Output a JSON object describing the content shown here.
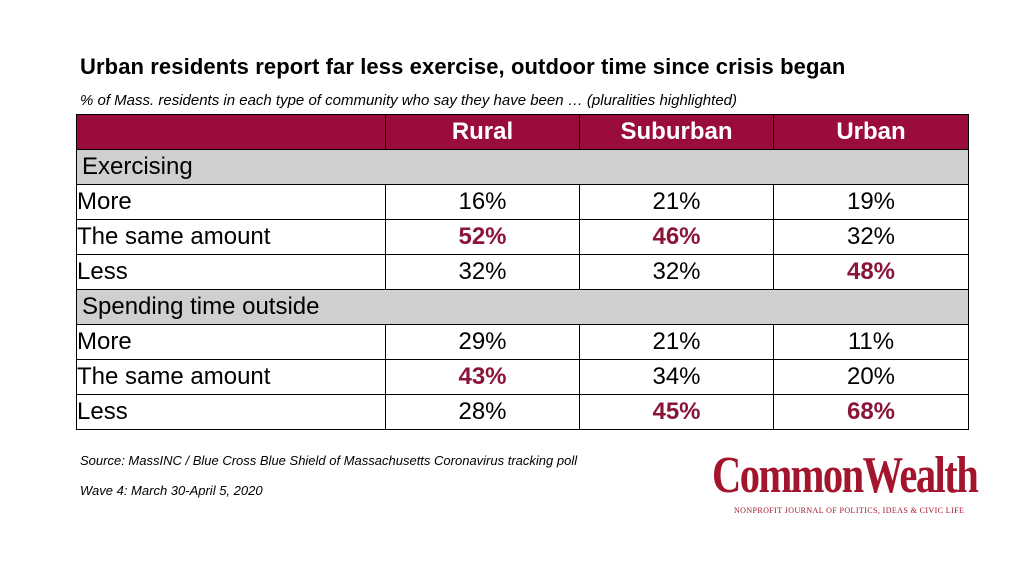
{
  "title": "Urban residents report far less exercise, outdoor time since crisis began",
  "subtitle": "% of Mass. residents in each type of community who say they have been … (pluralities highlighted)",
  "colors": {
    "header_bg": "#9a0c3b",
    "highlight": "#8b1538",
    "section_bg": "#cfcfcf",
    "logo": "#a3152d"
  },
  "chart_data": {
    "type": "table",
    "columns": [
      "Rural",
      "Suburban",
      "Urban"
    ],
    "sections": [
      {
        "name": "Exercising",
        "rows": [
          {
            "label": "More",
            "values": [
              "16%",
              "21%",
              "19%"
            ],
            "highlight": [
              false,
              false,
              false
            ]
          },
          {
            "label": "The same amount",
            "values": [
              "52%",
              "46%",
              "32%"
            ],
            "highlight": [
              true,
              true,
              false
            ]
          },
          {
            "label": "Less",
            "values": [
              "32%",
              "32%",
              "48%"
            ],
            "highlight": [
              false,
              false,
              true
            ]
          }
        ]
      },
      {
        "name": "Spending time outside",
        "rows": [
          {
            "label": "More",
            "values": [
              "29%",
              "21%",
              "11%"
            ],
            "highlight": [
              false,
              false,
              false
            ]
          },
          {
            "label": "The same amount",
            "values": [
              "43%",
              "34%",
              "20%"
            ],
            "highlight": [
              true,
              false,
              false
            ]
          },
          {
            "label": "Less",
            "values": [
              "28%",
              "45%",
              "68%"
            ],
            "highlight": [
              false,
              true,
              true
            ]
          }
        ]
      }
    ]
  },
  "source": "Source: MassINC / Blue Cross Blue Shield of Massachusetts Coronavirus tracking poll",
  "wave": "Wave 4: March 30-April 5, 2020",
  "logo": {
    "name": "CommonWealth",
    "tagline": "NONPROFIT JOURNAL OF POLITICS, IDEAS & CIVIC LIFE"
  }
}
